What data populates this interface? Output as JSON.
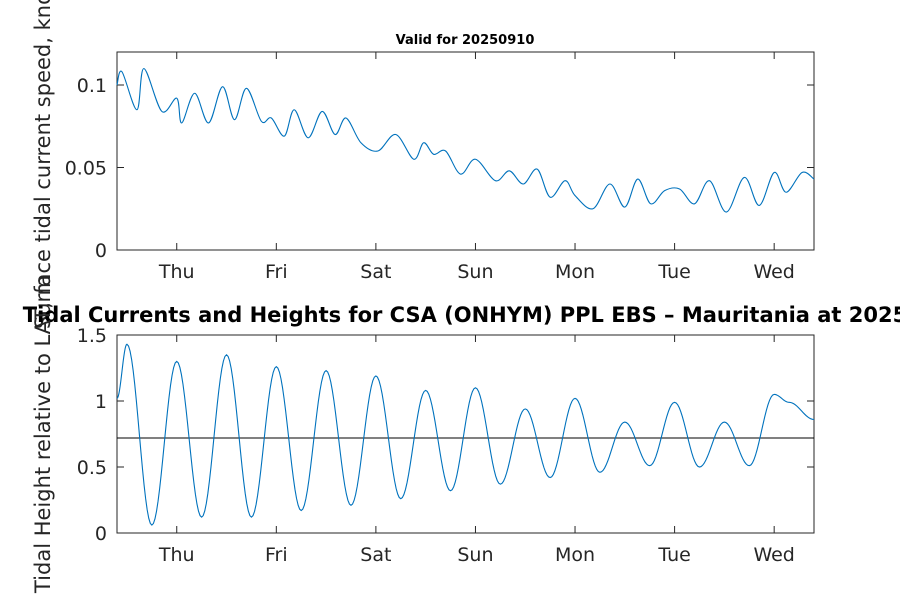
{
  "figure": {
    "main_title": "Tidal Currents and Heights for CSA (ONHYM) PPL EBS  – Mauritania at 2025",
    "line_color": "#0072bd",
    "reference_line_color": "#000000"
  },
  "chart_data": [
    {
      "type": "line",
      "title": "Valid for 20250910",
      "xlabel": "",
      "ylabel": "Surface tidal current speed, knots",
      "xlim": [
        0,
        7
      ],
      "ylim": [
        0,
        0.12
      ],
      "yticks": [
        0,
        0.05,
        0.1
      ],
      "ytick_labels": [
        "0",
        "0.05",
        "0.1"
      ],
      "xticks": [
        0.6,
        1.6,
        2.6,
        3.6,
        4.6,
        5.6,
        6.6
      ],
      "xtick_labels": [
        "Thu",
        "Fri",
        "Sat",
        "Sun",
        "Mon",
        "Tue",
        "Wed"
      ],
      "grid": false,
      "x": [
        0,
        0.05,
        0.2,
        0.27,
        0.45,
        0.6,
        0.65,
        0.78,
        0.92,
        1.06,
        1.18,
        1.3,
        1.45,
        1.55,
        1.68,
        1.78,
        1.92,
        2.06,
        2.19,
        2.3,
        2.45,
        2.62,
        2.8,
        2.98,
        3.08,
        3.18,
        3.3,
        3.45,
        3.6,
        3.8,
        3.94,
        4.08,
        4.22,
        4.35,
        4.5,
        4.6,
        4.78,
        4.95,
        5.1,
        5.23,
        5.36,
        5.5,
        5.65,
        5.8,
        5.95,
        6.12,
        6.3,
        6.45,
        6.6,
        6.72,
        6.88,
        7.0
      ],
      "y": [
        0.1,
        0.108,
        0.085,
        0.11,
        0.084,
        0.092,
        0.077,
        0.095,
        0.077,
        0.099,
        0.079,
        0.098,
        0.078,
        0.08,
        0.069,
        0.085,
        0.068,
        0.084,
        0.07,
        0.08,
        0.065,
        0.06,
        0.07,
        0.055,
        0.065,
        0.058,
        0.06,
        0.046,
        0.055,
        0.042,
        0.048,
        0.04,
        0.049,
        0.032,
        0.042,
        0.033,
        0.025,
        0.04,
        0.026,
        0.043,
        0.028,
        0.036,
        0.037,
        0.028,
        0.042,
        0.023,
        0.044,
        0.027,
        0.047,
        0.035,
        0.047,
        0.043
      ]
    },
    {
      "type": "line",
      "title": "",
      "xlabel": "",
      "ylabel": "Tidal Height relative to LAT, m",
      "xlim": [
        0,
        7
      ],
      "ylim": [
        0,
        1.5
      ],
      "yticks": [
        0,
        0.5,
        1,
        1.5
      ],
      "ytick_labels": [
        "0",
        "0.5",
        "1",
        "1.5"
      ],
      "xticks": [
        0.6,
        1.6,
        2.6,
        3.6,
        4.6,
        5.6,
        6.6
      ],
      "xtick_labels": [
        "Thu",
        "Fri",
        "Sat",
        "Sun",
        "Mon",
        "Tue",
        "Wed"
      ],
      "grid": false,
      "reference_line_y": 0.72,
      "extrema": [
        [
          0,
          1.02
        ],
        [
          0.1,
          1.43
        ],
        [
          0.35,
          0.06
        ],
        [
          0.6,
          1.3
        ],
        [
          0.85,
          0.12
        ],
        [
          1.1,
          1.35
        ],
        [
          1.35,
          0.12
        ],
        [
          1.6,
          1.26
        ],
        [
          1.85,
          0.17
        ],
        [
          2.1,
          1.23
        ],
        [
          2.35,
          0.21
        ],
        [
          2.6,
          1.19
        ],
        [
          2.85,
          0.26
        ],
        [
          3.1,
          1.08
        ],
        [
          3.35,
          0.32
        ],
        [
          3.6,
          1.1
        ],
        [
          3.85,
          0.37
        ],
        [
          4.1,
          0.94
        ],
        [
          4.35,
          0.42
        ],
        [
          4.6,
          1.02
        ],
        [
          4.85,
          0.46
        ],
        [
          5.1,
          0.84
        ],
        [
          5.35,
          0.51
        ],
        [
          5.6,
          0.99
        ],
        [
          5.85,
          0.5
        ],
        [
          6.1,
          0.84
        ],
        [
          6.35,
          0.51
        ],
        [
          6.6,
          1.05
        ],
        [
          6.75,
          0.99
        ],
        [
          7.0,
          0.86
        ]
      ]
    }
  ]
}
